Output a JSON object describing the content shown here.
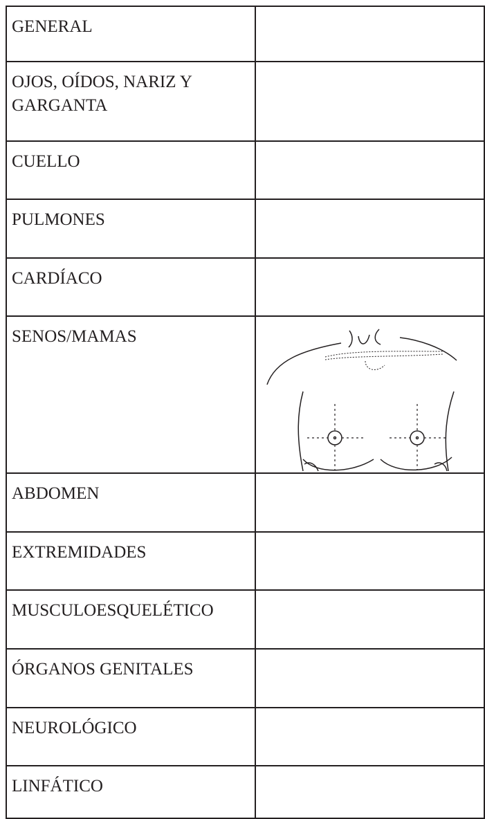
{
  "table": {
    "rows": [
      {
        "label": "GENERAL"
      },
      {
        "label": "OJOS, OÍDOS, NARIZ Y GARGANTA"
      },
      {
        "label": "CUELLO"
      },
      {
        "label": "PULMONES"
      },
      {
        "label": "CARDÍACO"
      },
      {
        "label": "SENOS/MAMAS"
      },
      {
        "label": "ABDOMEN"
      },
      {
        "label": "EXTREMIDADES"
      },
      {
        "label": "MUSCULOESQUELÉTICO"
      },
      {
        "label": "ÓRGANOS GENITALES"
      },
      {
        "label": "NEUROLÓGICO"
      },
      {
        "label": "LINFÁTICO"
      }
    ]
  }
}
